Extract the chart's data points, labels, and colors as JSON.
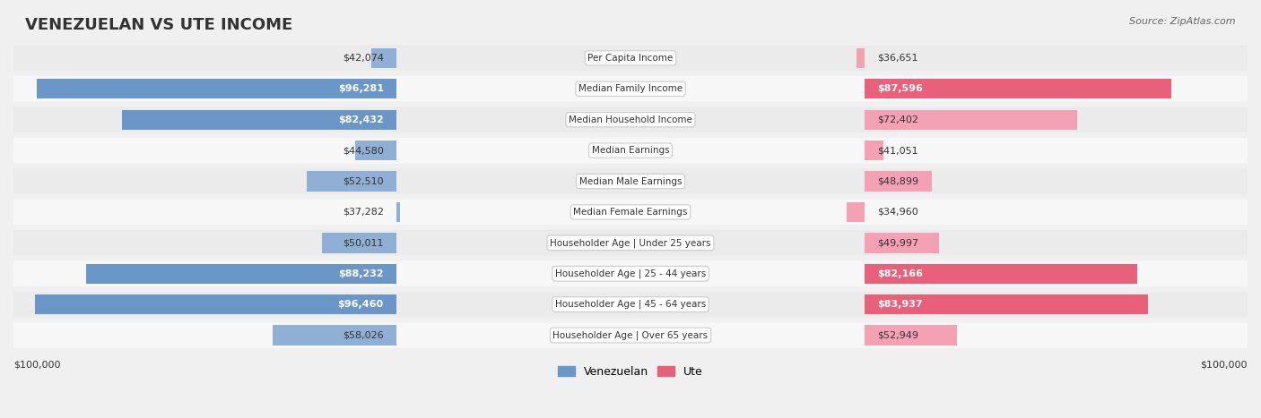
{
  "title": "VENEZUELAN VS UTE INCOME",
  "source": "Source: ZipAtlas.com",
  "categories": [
    "Per Capita Income",
    "Median Family Income",
    "Median Household Income",
    "Median Earnings",
    "Median Male Earnings",
    "Median Female Earnings",
    "Householder Age | Under 25 years",
    "Householder Age | 25 - 44 years",
    "Householder Age | 45 - 64 years",
    "Householder Age | Over 65 years"
  ],
  "venezuelan_values": [
    42074,
    96281,
    82432,
    44580,
    52510,
    37282,
    50011,
    88232,
    96460,
    58026
  ],
  "ute_values": [
    36651,
    87596,
    72402,
    41051,
    48899,
    34960,
    49997,
    82166,
    83937,
    52949
  ],
  "venezuelan_color": "#90afd4",
  "venezuelan_color_dark": "#6b96c8",
  "ute_color": "#f4a0b5",
  "ute_color_dark": "#e8607a",
  "max_value": 100000,
  "x_label_left": "$100,000",
  "x_label_right": "$100,000",
  "legend_venezuelan": "Venezuelan",
  "legend_ute": "Ute",
  "background_color": "#f0f0f0",
  "row_bg_color": "#e8e8e8",
  "row_bg_light": "#f5f5f5"
}
